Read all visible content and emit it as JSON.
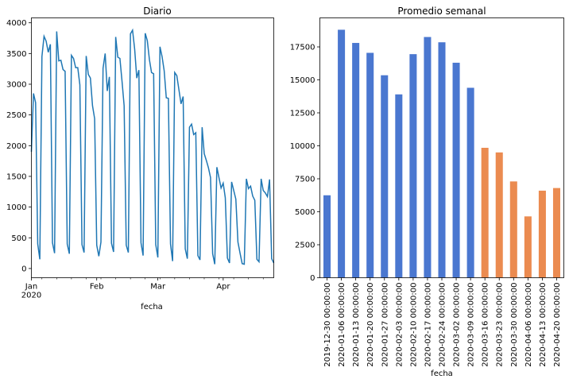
{
  "chart_data": [
    {
      "type": "line",
      "title": "Diario",
      "xlabel": "fecha",
      "ylabel": "",
      "xlim": [
        "2020-01-01",
        "2020-04-25"
      ],
      "ylim": [
        -150,
        4080
      ],
      "yticks": [
        0,
        500,
        1000,
        1500,
        2000,
        2500,
        3000,
        3500,
        4000
      ],
      "xticks": [
        {
          "date": "2020-01-01",
          "label": "Jan",
          "sublabel": "2020"
        },
        {
          "date": "2020-02-01",
          "label": "Feb",
          "sublabel": ""
        },
        {
          "date": "2020-03-01",
          "label": "Mar",
          "sublabel": ""
        },
        {
          "date": "2020-04-01",
          "label": "Apr",
          "sublabel": ""
        }
      ],
      "color": "#1f77b4",
      "grid": false,
      "x": [
        "2020-01-01",
        "2020-01-02",
        "2020-01-03",
        "2020-01-04",
        "2020-01-05",
        "2020-01-06",
        "2020-01-07",
        "2020-01-08",
        "2020-01-09",
        "2020-01-10",
        "2020-01-11",
        "2020-01-12",
        "2020-01-13",
        "2020-01-14",
        "2020-01-15",
        "2020-01-16",
        "2020-01-17",
        "2020-01-18",
        "2020-01-19",
        "2020-01-20",
        "2020-01-21",
        "2020-01-22",
        "2020-01-23",
        "2020-01-24",
        "2020-01-25",
        "2020-01-26",
        "2020-01-27",
        "2020-01-28",
        "2020-01-29",
        "2020-01-30",
        "2020-01-31",
        "2020-02-01",
        "2020-02-02",
        "2020-02-03",
        "2020-02-04",
        "2020-02-05",
        "2020-02-06",
        "2020-02-07",
        "2020-02-08",
        "2020-02-09",
        "2020-02-10",
        "2020-02-11",
        "2020-02-12",
        "2020-02-13",
        "2020-02-14",
        "2020-02-15",
        "2020-02-16",
        "2020-02-17",
        "2020-02-18",
        "2020-02-19",
        "2020-02-20",
        "2020-02-21",
        "2020-02-22",
        "2020-02-23",
        "2020-02-24",
        "2020-02-25",
        "2020-02-26",
        "2020-02-27",
        "2020-02-28",
        "2020-02-29",
        "2020-03-01",
        "2020-03-02",
        "2020-03-03",
        "2020-03-04",
        "2020-03-05",
        "2020-03-06",
        "2020-03-07",
        "2020-03-08",
        "2020-03-09",
        "2020-03-10",
        "2020-03-11",
        "2020-03-12",
        "2020-03-13",
        "2020-03-14",
        "2020-03-15",
        "2020-03-16",
        "2020-03-17",
        "2020-03-18",
        "2020-03-19",
        "2020-03-20",
        "2020-03-21",
        "2020-03-22",
        "2020-03-23",
        "2020-03-24",
        "2020-03-25",
        "2020-03-26",
        "2020-03-27",
        "2020-03-28",
        "2020-03-29",
        "2020-03-30",
        "2020-03-31",
        "2020-04-01",
        "2020-04-02",
        "2020-04-03",
        "2020-04-04",
        "2020-04-05",
        "2020-04-06",
        "2020-04-07",
        "2020-04-08",
        "2020-04-09",
        "2020-04-10",
        "2020-04-11",
        "2020-04-12",
        "2020-04-13",
        "2020-04-14",
        "2020-04-15",
        "2020-04-16",
        "2020-04-17",
        "2020-04-18",
        "2020-04-19",
        "2020-04-20",
        "2020-04-21",
        "2020-04-22",
        "2020-04-23",
        "2020-04-24",
        "2020-04-25"
      ],
      "y": [
        1900,
        2850,
        2700,
        400,
        150,
        3450,
        3780,
        3700,
        3520,
        3650,
        420,
        250,
        3860,
        3380,
        3390,
        3240,
        3210,
        400,
        240,
        3470,
        3420,
        3270,
        3270,
        2990,
        390,
        260,
        3460,
        3160,
        3100,
        2650,
        2440,
        380,
        200,
        430,
        3260,
        3500,
        2890,
        3120,
        410,
        270,
        3770,
        3440,
        3420,
        3050,
        2650,
        380,
        260,
        3820,
        3880,
        3570,
        3100,
        3230,
        420,
        210,
        3830,
        3710,
        3400,
        3190,
        3170,
        390,
        180,
        3610,
        3450,
        3220,
        2780,
        2770,
        400,
        120,
        3190,
        3140,
        2910,
        2680,
        2800,
        320,
        160,
        2300,
        2350,
        2180,
        2210,
        210,
        140,
        2300,
        1870,
        1760,
        1640,
        1480,
        240,
        70,
        1650,
        1480,
        1310,
        1390,
        1150,
        170,
        90,
        1410,
        1270,
        1130,
        430,
        250,
        80,
        70,
        1460,
        1300,
        1340,
        1180,
        1110,
        150,
        110,
        1460,
        1270,
        1230,
        1170,
        1450,
        160,
        90
      ]
    },
    {
      "type": "bar",
      "title": "Promedio semanal",
      "xlabel": "fecha",
      "ylabel": "",
      "ylim": [
        0,
        19700
      ],
      "yticks": [
        0,
        2500,
        5000,
        7500,
        10000,
        12500,
        15000,
        17500
      ],
      "categories": [
        "2019-12-30 00:00:00",
        "2020-01-06 00:00:00",
        "2020-01-13 00:00:00",
        "2020-01-20 00:00:00",
        "2020-01-27 00:00:00",
        "2020-02-03 00:00:00",
        "2020-02-10 00:00:00",
        "2020-02-17 00:00:00",
        "2020-02-24 00:00:00",
        "2020-03-02 00:00:00",
        "2020-03-09 00:00:00",
        "2020-03-16 00:00:00",
        "2020-03-23 00:00:00",
        "2020-03-30 00:00:00",
        "2020-04-06 00:00:00",
        "2020-04-13 00:00:00",
        "2020-04-20 00:00:00"
      ],
      "values": [
        6250,
        18800,
        17800,
        17050,
        15350,
        13900,
        16950,
        18250,
        17850,
        16300,
        14400,
        9850,
        9500,
        7300,
        4650,
        6600,
        6800
      ],
      "bar_colors": [
        "#4a77d0",
        "#4a77d0",
        "#4a77d0",
        "#4a77d0",
        "#4a77d0",
        "#4a77d0",
        "#4a77d0",
        "#4a77d0",
        "#4a77d0",
        "#4a77d0",
        "#4a77d0",
        "#eb8b50",
        "#eb8b50",
        "#eb8b50",
        "#eb8b50",
        "#eb8b50",
        "#eb8b50"
      ],
      "grid": false
    }
  ]
}
